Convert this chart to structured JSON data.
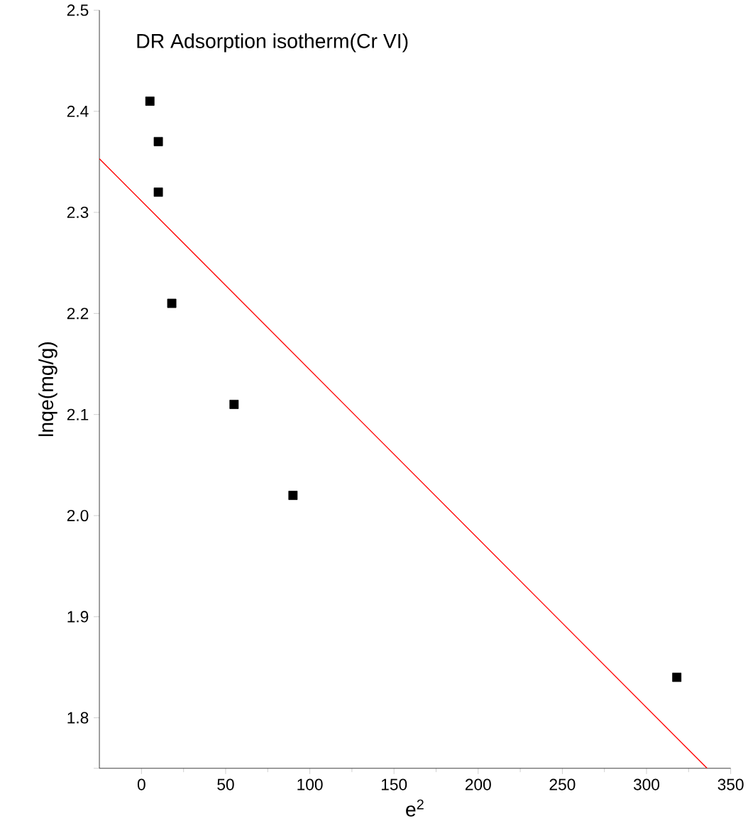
{
  "chart_data": {
    "type": "scatter",
    "title": "DR Adsorption isotherm(Cr VI)",
    "xlabel": "e$^{2}$",
    "ylabel": "lnqe(mg/g)",
    "xlim": [
      -25,
      350
    ],
    "ylim": [
      1.75,
      2.5
    ],
    "xticks": [
      0,
      50,
      100,
      150,
      200,
      250,
      300,
      350
    ],
    "yticks": [
      {
        "value": 1.75,
        "label": null
      },
      1.8,
      1.9,
      {
        "value": 2.0,
        "label": "2.0"
      },
      2.1,
      2.2,
      2.3,
      2.4,
      2.5
    ],
    "series": [
      {
        "color": "#000000",
        "marker": "square",
        "x": [
          5,
          10,
          10,
          18,
          55,
          90,
          318
        ],
        "values": [
          2.41,
          2.37,
          2.32,
          2.21,
          2.11,
          2.02,
          1.84
        ]
      },
      {
        "type": "line",
        "color": "#ff0000",
        "marker": "none",
        "line_style": "solid",
        "x": [
          -25,
          336
        ],
        "values": [
          2.353,
          1.75
        ]
      }
    ]
  }
}
